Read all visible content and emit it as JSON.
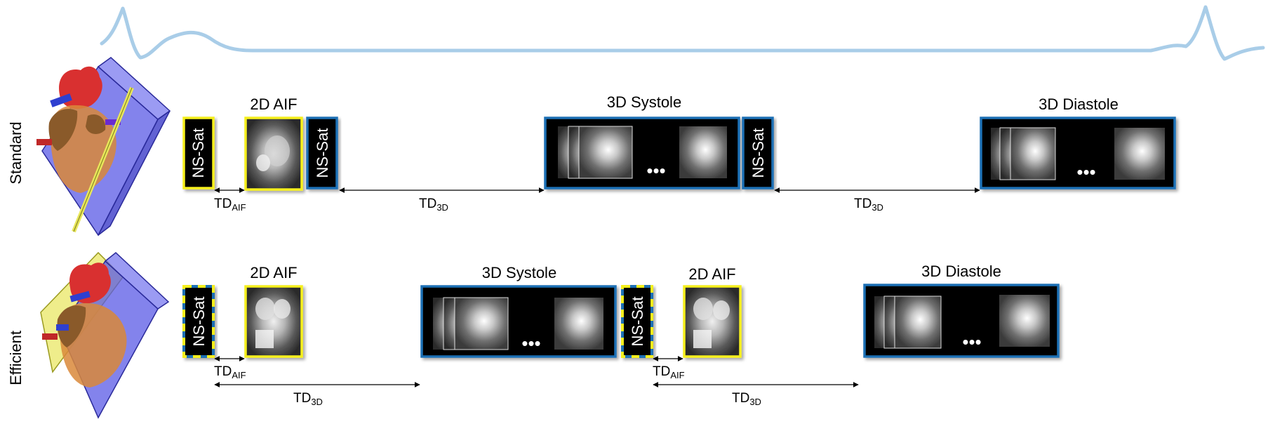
{
  "rows": [
    {
      "label": "Standard",
      "blocks": [
        {
          "kind": "nssat",
          "text": "NS-Sat",
          "color": "yellow"
        },
        {
          "kind": "img",
          "title": "2D AIF",
          "color": "yellow"
        },
        {
          "kind": "nssat",
          "text": "NS-Sat",
          "color": "blue"
        },
        {
          "kind": "img3d",
          "title": "3D Systole",
          "dots": "•••"
        },
        {
          "kind": "nssat",
          "text": "NS-Sat",
          "color": "blue"
        },
        {
          "kind": "img3d",
          "title": "3D Diastole",
          "dots": "•••"
        }
      ],
      "delays": [
        {
          "main": "TD",
          "sub": "AIF"
        },
        {
          "main": "TD",
          "sub": "3D"
        },
        {
          "main": "TD",
          "sub": "3D"
        }
      ]
    },
    {
      "label": "Efficient",
      "blocks": [
        {
          "kind": "nssat",
          "text": "NS-Sat",
          "color": "dashed"
        },
        {
          "kind": "img",
          "title": "2D AIF",
          "color": "yellow"
        },
        {
          "kind": "img3d",
          "title": "3D Systole",
          "dots": "•••"
        },
        {
          "kind": "nssat",
          "text": "NS-Sat",
          "color": "dashed"
        },
        {
          "kind": "img",
          "title": "2D AIF",
          "color": "yellow"
        },
        {
          "kind": "img3d",
          "title": "3D Diastole",
          "dots": "•••"
        }
      ],
      "delays": [
        {
          "main": "TD",
          "sub": "AIF"
        },
        {
          "main": "TD",
          "sub": "3D"
        },
        {
          "main": "TD",
          "sub": "AIF"
        },
        {
          "main": "TD",
          "sub": "3D"
        }
      ]
    }
  ],
  "colors": {
    "yellow": "#f5ef1e",
    "blue": "#1f6fb5",
    "ecg": "#a9cde8",
    "slab": "#5a5ae6",
    "aif_plane": "#e8e65a",
    "heart_red": "#d93030",
    "heart_brown": "#8a5a2a",
    "heart_orange": "#d9883a",
    "vessel_blue": "#2e3fd0"
  }
}
